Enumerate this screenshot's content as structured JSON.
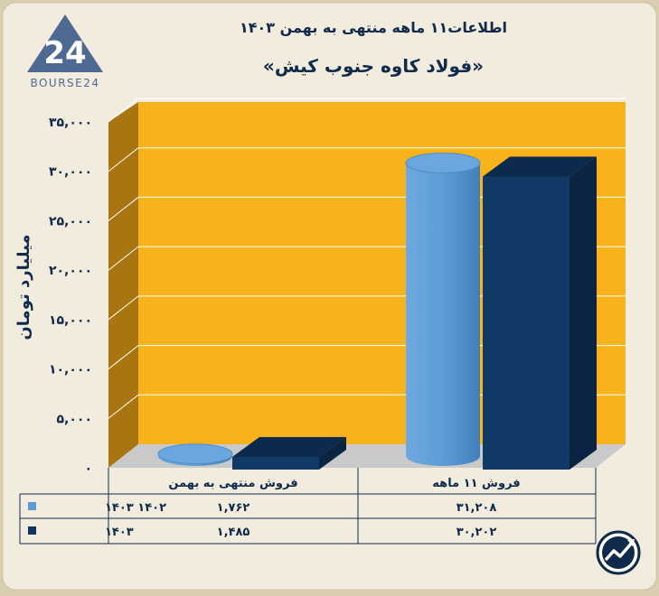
{
  "header": {
    "title": "اطلاعات۱۱ ماهه منتهی به بهمن ۱۴۰۳",
    "subtitle": "«فولاد کاوه جنوب کیش»"
  },
  "logo": {
    "text": "BOURSE24",
    "mark": "24"
  },
  "chart_data": {
    "type": "bar",
    "categories": [
      "فروش منتهی به  بهمن",
      "فروش ۱۱  ماهه"
    ],
    "series": [
      {
        "name": "۱۴۰۲ ۱۴۰۳",
        "values": [
          1762,
          31208
        ],
        "color": "#5b9bd5",
        "shape": "cylinder"
      },
      {
        "name": "۱۴۰۳",
        "values": [
          1485,
          30202
        ],
        "color": "#0f3460",
        "shape": "box"
      }
    ],
    "ylabel": "میلیارد تومان",
    "ylim": [
      0,
      35000
    ],
    "yticks": [
      0,
      5000,
      10000,
      15000,
      20000,
      25000,
      30000,
      35000
    ],
    "ytick_labels": [
      "۰",
      "۵,۰۰۰",
      "۱۰,۰۰۰",
      "۱۵,۰۰۰",
      "۲۰,۰۰۰",
      "۲۵,۰۰۰",
      "۳۰,۰۰۰",
      "۳۵,۰۰۰"
    ],
    "grid": true,
    "background": "#f7b21c",
    "table": {
      "rows": [
        {
          "label": "۱۴۰۲ ۱۴۰۳",
          "cells": [
            "۱,۷۶۲",
            "۳۱,۲۰۸"
          ]
        },
        {
          "label": "۱۴۰۳",
          "cells": [
            "۱,۴۸۵",
            "۳۰,۲۰۲"
          ]
        }
      ]
    }
  }
}
